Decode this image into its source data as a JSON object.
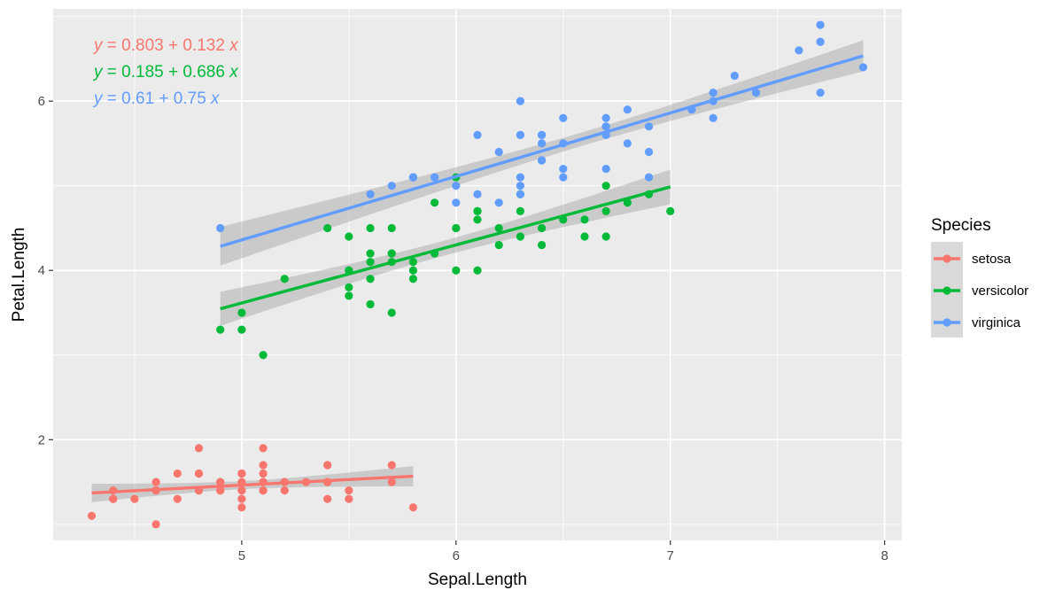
{
  "chart_data": {
    "type": "scatter",
    "xlabel": "Sepal.Length",
    "ylabel": "Petal.Length",
    "xlim": [
      4.12,
      8.08
    ],
    "ylim": [
      0.81,
      7.09
    ],
    "x_ticks": [
      5,
      6,
      7,
      8
    ],
    "y_ticks": [
      2,
      4,
      6
    ],
    "grid": true,
    "legend": {
      "title": "Species",
      "position": "right"
    },
    "equations": [
      {
        "series": "setosa",
        "prefix": "y",
        "text": " = 0.803 + 0.132 ",
        "suffix": "x"
      },
      {
        "series": "versicolor",
        "prefix": "y",
        "text": " = 0.185 + 0.686 ",
        "suffix": "x"
      },
      {
        "series": "virginica",
        "prefix": "y",
        "text": " = 0.61 + 0.75 ",
        "suffix": "x"
      }
    ],
    "series": [
      {
        "name": "setosa",
        "color": "#F8766D",
        "fit": {
          "intercept": 0.803,
          "slope": 0.132,
          "x_range": [
            4.3,
            5.8
          ]
        },
        "points": [
          [
            5.1,
            1.4
          ],
          [
            4.9,
            1.4
          ],
          [
            4.7,
            1.3
          ],
          [
            4.6,
            1.5
          ],
          [
            5.0,
            1.4
          ],
          [
            5.4,
            1.7
          ],
          [
            4.6,
            1.4
          ],
          [
            5.0,
            1.5
          ],
          [
            4.4,
            1.4
          ],
          [
            4.9,
            1.5
          ],
          [
            5.4,
            1.5
          ],
          [
            4.8,
            1.6
          ],
          [
            4.8,
            1.4
          ],
          [
            4.3,
            1.1
          ],
          [
            5.8,
            1.2
          ],
          [
            5.7,
            1.5
          ],
          [
            5.4,
            1.3
          ],
          [
            5.1,
            1.4
          ],
          [
            5.7,
            1.7
          ],
          [
            5.1,
            1.5
          ],
          [
            5.4,
            1.7
          ],
          [
            5.1,
            1.5
          ],
          [
            4.6,
            1.0
          ],
          [
            5.1,
            1.7
          ],
          [
            4.8,
            1.9
          ],
          [
            5.0,
            1.6
          ],
          [
            5.0,
            1.6
          ],
          [
            5.2,
            1.5
          ],
          [
            5.2,
            1.4
          ],
          [
            4.7,
            1.6
          ],
          [
            4.8,
            1.6
          ],
          [
            5.4,
            1.5
          ],
          [
            5.2,
            1.5
          ],
          [
            5.5,
            1.4
          ],
          [
            4.9,
            1.5
          ],
          [
            5.0,
            1.2
          ],
          [
            5.5,
            1.3
          ],
          [
            4.9,
            1.4
          ],
          [
            4.4,
            1.3
          ],
          [
            5.1,
            1.5
          ],
          [
            5.0,
            1.3
          ],
          [
            4.5,
            1.3
          ],
          [
            4.4,
            1.3
          ],
          [
            5.0,
            1.6
          ],
          [
            5.1,
            1.9
          ],
          [
            4.8,
            1.4
          ],
          [
            5.1,
            1.6
          ],
          [
            4.6,
            1.4
          ],
          [
            5.3,
            1.5
          ],
          [
            5.0,
            1.4
          ]
        ]
      },
      {
        "name": "versicolor",
        "color": "#00BA38",
        "fit": {
          "intercept": 0.185,
          "slope": 0.686,
          "x_range": [
            4.9,
            7.0
          ]
        },
        "points": [
          [
            7.0,
            4.7
          ],
          [
            6.4,
            4.5
          ],
          [
            6.9,
            4.9
          ],
          [
            5.5,
            4.0
          ],
          [
            6.5,
            4.6
          ],
          [
            5.7,
            4.5
          ],
          [
            6.3,
            4.7
          ],
          [
            4.9,
            3.3
          ],
          [
            6.6,
            4.6
          ],
          [
            5.2,
            3.9
          ],
          [
            5.0,
            3.5
          ],
          [
            5.9,
            4.2
          ],
          [
            6.0,
            4.0
          ],
          [
            6.1,
            4.7
          ],
          [
            5.6,
            3.6
          ],
          [
            6.7,
            4.4
          ],
          [
            5.6,
            4.5
          ],
          [
            5.8,
            4.1
          ],
          [
            6.2,
            4.5
          ],
          [
            5.6,
            3.9
          ],
          [
            5.9,
            4.8
          ],
          [
            6.1,
            4.0
          ],
          [
            6.3,
            4.9
          ],
          [
            6.1,
            4.7
          ],
          [
            6.4,
            4.3
          ],
          [
            6.6,
            4.4
          ],
          [
            6.8,
            4.8
          ],
          [
            6.7,
            5.0
          ],
          [
            6.0,
            4.5
          ],
          [
            5.7,
            3.5
          ],
          [
            5.5,
            3.8
          ],
          [
            5.5,
            3.7
          ],
          [
            5.8,
            3.9
          ],
          [
            6.0,
            5.1
          ],
          [
            5.4,
            4.5
          ],
          [
            6.0,
            4.5
          ],
          [
            6.7,
            4.7
          ],
          [
            6.3,
            4.4
          ],
          [
            5.6,
            4.1
          ],
          [
            5.5,
            4.0
          ],
          [
            5.5,
            4.4
          ],
          [
            6.1,
            4.6
          ],
          [
            5.8,
            4.0
          ],
          [
            5.0,
            3.3
          ],
          [
            5.6,
            4.2
          ],
          [
            5.7,
            4.2
          ],
          [
            5.7,
            4.2
          ],
          [
            6.2,
            4.3
          ],
          [
            5.1,
            3.0
          ],
          [
            5.7,
            4.1
          ]
        ]
      },
      {
        "name": "virginica",
        "color": "#619CFF",
        "fit": {
          "intercept": 0.61,
          "slope": 0.75,
          "x_range": [
            4.9,
            7.9
          ]
        },
        "points": [
          [
            6.3,
            6.0
          ],
          [
            5.8,
            5.1
          ],
          [
            7.1,
            5.9
          ],
          [
            6.3,
            5.6
          ],
          [
            6.5,
            5.8
          ],
          [
            7.6,
            6.6
          ],
          [
            4.9,
            4.5
          ],
          [
            7.3,
            6.3
          ],
          [
            6.7,
            5.8
          ],
          [
            7.2,
            6.1
          ],
          [
            6.5,
            5.1
          ],
          [
            6.4,
            5.3
          ],
          [
            6.8,
            5.5
          ],
          [
            5.7,
            5.0
          ],
          [
            5.8,
            5.1
          ],
          [
            6.4,
            5.3
          ],
          [
            6.5,
            5.5
          ],
          [
            7.7,
            6.7
          ],
          [
            7.7,
            6.9
          ],
          [
            6.0,
            5.0
          ],
          [
            6.9,
            5.7
          ],
          [
            5.6,
            4.9
          ],
          [
            7.7,
            6.7
          ],
          [
            6.3,
            4.9
          ],
          [
            6.7,
            5.7
          ],
          [
            7.2,
            6.0
          ],
          [
            6.2,
            4.8
          ],
          [
            6.1,
            4.9
          ],
          [
            6.4,
            5.6
          ],
          [
            7.2,
            5.8
          ],
          [
            7.4,
            6.1
          ],
          [
            7.9,
            6.4
          ],
          [
            6.4,
            5.6
          ],
          [
            6.3,
            5.1
          ],
          [
            6.1,
            5.6
          ],
          [
            7.7,
            6.1
          ],
          [
            6.3,
            5.6
          ],
          [
            6.4,
            5.5
          ],
          [
            6.0,
            4.8
          ],
          [
            6.9,
            5.4
          ],
          [
            6.7,
            5.6
          ],
          [
            6.9,
            5.1
          ],
          [
            5.8,
            5.1
          ],
          [
            6.8,
            5.9
          ],
          [
            6.7,
            5.7
          ],
          [
            6.7,
            5.2
          ],
          [
            6.3,
            5.0
          ],
          [
            6.5,
            5.2
          ],
          [
            6.2,
            5.4
          ],
          [
            5.9,
            5.1
          ]
        ]
      }
    ]
  }
}
